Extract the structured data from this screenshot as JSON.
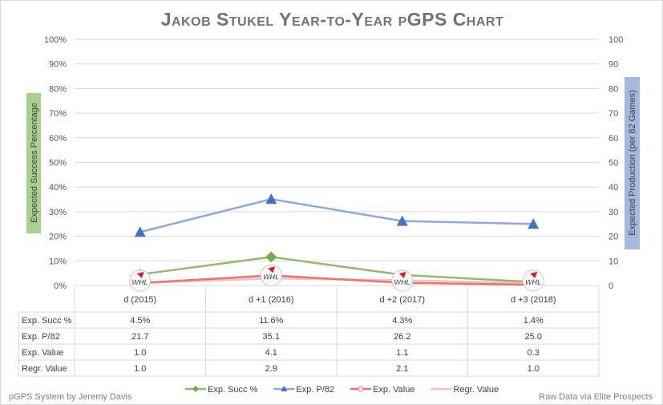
{
  "chart_data": {
    "type": "line",
    "title": "Jakob Stukel Year-to-Year pGPS Chart",
    "ylabel": "Expected Success Percentage",
    "y2label": "Expected Production (per 82 Games)",
    "ylim": [
      0,
      100
    ],
    "y2lim": [
      0,
      100
    ],
    "yticks": [
      "0%",
      "10%",
      "20%",
      "30%",
      "40%",
      "50%",
      "60%",
      "70%",
      "80%",
      "90%",
      "100%"
    ],
    "y2ticks": [
      "0",
      "10",
      "20",
      "30",
      "40",
      "50",
      "60",
      "70",
      "80",
      "90",
      "100"
    ],
    "categories": [
      "d (2015)",
      "d +1 (2016)",
      "d +2 (2017)",
      "d +3 (2018)"
    ],
    "series": [
      {
        "name": "Exp. Succ %",
        "axis": "left",
        "values": [
          4.5,
          11.6,
          4.3,
          1.4
        ],
        "display": [
          "4.5%",
          "11.6%",
          "4.3%",
          "1.4%"
        ],
        "color": "#8fbc6a",
        "marker": "diamond"
      },
      {
        "name": "Exp. P/82",
        "axis": "right",
        "values": [
          21.7,
          35.1,
          26.2,
          25.0
        ],
        "display": [
          "21.7",
          "35.1",
          "26.2",
          "25.0"
        ],
        "color": "#8ea9db",
        "marker": "triangle"
      },
      {
        "name": "Exp. Value",
        "axis": "right",
        "values": [
          1.0,
          4.1,
          1.1,
          0.3
        ],
        "display": [
          "1.0",
          "4.1",
          "1.1",
          "0.3"
        ],
        "color": "#f07070",
        "marker": "logo"
      },
      {
        "name": "Regr. Value",
        "axis": "right",
        "values": [
          1.0,
          2.9,
          2.1,
          1.0
        ],
        "display": [
          "1.0",
          "2.9",
          "2.1",
          "1.0"
        ],
        "color": "#f8c0c0",
        "marker": "none"
      }
    ],
    "table_labels": [
      "Exp. Succ %",
      "Exp. P/82",
      "Exp. Value",
      "Regr. Value"
    ],
    "marker_logo": "WHL",
    "legend": "bottom",
    "grid": true
  },
  "footer": {
    "left": "pGPS System by Jeremy Davis",
    "right": "Raw Data via Elite Prospects"
  }
}
